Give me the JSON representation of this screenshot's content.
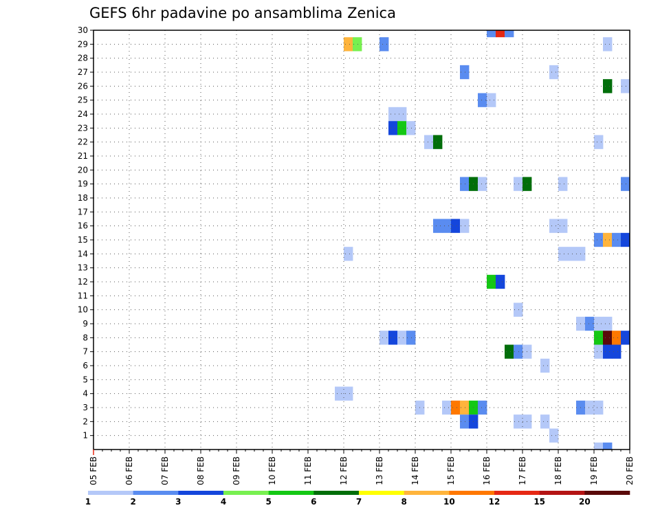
{
  "chart_data": {
    "type": "heatmap",
    "title": "GEFS 6hr padavine po ansamblima Zenica",
    "x_labels": [
      "05 FEB",
      "06 FEB",
      "07 FEB",
      "08 FEB",
      "09 FEB",
      "10 FEB",
      "11 FEB",
      "12 FEB",
      "13 FEB",
      "14 FEB",
      "15 FEB",
      "16 FEB",
      "17 FEB",
      "18 FEB",
      "19 FEB",
      "20 FEB"
    ],
    "y_labels": [
      "1",
      "2",
      "3",
      "4",
      "5",
      "6",
      "7",
      "8",
      "9",
      "10",
      "11",
      "12",
      "13",
      "14",
      "15",
      "16",
      "17",
      "18",
      "19",
      "20",
      "21",
      "22",
      "23",
      "24",
      "25",
      "26",
      "27",
      "28",
      "29",
      "30"
    ],
    "x_range": [
      "05 FEB 00Z",
      "20 FEB 00Z"
    ],
    "time_step_hours": 6,
    "y_range": [
      0,
      30
    ],
    "grid": "dotted",
    "colorbar": {
      "labels": [
        "1",
        "2",
        "3",
        "4",
        "5",
        "6",
        "7",
        "8",
        "10",
        "12",
        "15",
        "20"
      ],
      "colors": [
        "#b4c8f8",
        "#5a8cf0",
        "#1446dc",
        "#78f050",
        "#14c814",
        "#006e0a",
        "#ffff00",
        "#ffb43c",
        "#ff7800",
        "#e62814",
        "#b41414",
        "#5a0a0a"
      ]
    },
    "cells": [
      {
        "m": 30,
        "s": 45,
        "c": 1
      },
      {
        "m": 30,
        "s": 46,
        "c": 9
      },
      {
        "m": 30,
        "s": 47,
        "c": 1
      },
      {
        "m": 29,
        "s": 29,
        "c": 7
      },
      {
        "m": 29,
        "s": 30,
        "c": 3
      },
      {
        "m": 29,
        "s": 33,
        "c": 1
      },
      {
        "m": 29,
        "s": 58,
        "c": 0
      },
      {
        "m": 27,
        "s": 42,
        "c": 1
      },
      {
        "m": 27,
        "s": 52,
        "c": 0
      },
      {
        "m": 26,
        "s": 58,
        "c": 5
      },
      {
        "m": 26,
        "s": 60,
        "c": 0
      },
      {
        "m": 25,
        "s": 44,
        "c": 1
      },
      {
        "m": 25,
        "s": 45,
        "c": 0
      },
      {
        "m": 24,
        "s": 34,
        "c": 0
      },
      {
        "m": 24,
        "s": 35,
        "c": 0
      },
      {
        "m": 23,
        "s": 34,
        "c": 2
      },
      {
        "m": 23,
        "s": 35,
        "c": 4
      },
      {
        "m": 23,
        "s": 36,
        "c": 0
      },
      {
        "m": 22,
        "s": 38,
        "c": 0
      },
      {
        "m": 22,
        "s": 39,
        "c": 5
      },
      {
        "m": 22,
        "s": 57,
        "c": 0
      },
      {
        "m": 19,
        "s": 42,
        "c": 1
      },
      {
        "m": 19,
        "s": 43,
        "c": 5
      },
      {
        "m": 19,
        "s": 44,
        "c": 0
      },
      {
        "m": 19,
        "s": 48,
        "c": 0
      },
      {
        "m": 19,
        "s": 49,
        "c": 5
      },
      {
        "m": 19,
        "s": 53,
        "c": 0
      },
      {
        "m": 19,
        "s": 60,
        "c": 1
      },
      {
        "m": 16,
        "s": 39,
        "c": 1
      },
      {
        "m": 16,
        "s": 40,
        "c": 1
      },
      {
        "m": 16,
        "s": 41,
        "c": 2
      },
      {
        "m": 16,
        "s": 42,
        "c": 0
      },
      {
        "m": 16,
        "s": 52,
        "c": 0
      },
      {
        "m": 16,
        "s": 53,
        "c": 0
      },
      {
        "m": 15,
        "s": 57,
        "c": 1
      },
      {
        "m": 15,
        "s": 58,
        "c": 7
      },
      {
        "m": 15,
        "s": 59,
        "c": 1
      },
      {
        "m": 15,
        "s": 60,
        "c": 2
      },
      {
        "m": 14,
        "s": 29,
        "c": 0
      },
      {
        "m": 14,
        "s": 53,
        "c": 0
      },
      {
        "m": 14,
        "s": 54,
        "c": 0
      },
      {
        "m": 14,
        "s": 55,
        "c": 0
      },
      {
        "m": 12,
        "s": 45,
        "c": 4
      },
      {
        "m": 12,
        "s": 46,
        "c": 2
      },
      {
        "m": 10,
        "s": 48,
        "c": 0
      },
      {
        "m": 9,
        "s": 55,
        "c": 0
      },
      {
        "m": 9,
        "s": 56,
        "c": 1
      },
      {
        "m": 9,
        "s": 57,
        "c": 0
      },
      {
        "m": 9,
        "s": 58,
        "c": 0
      },
      {
        "m": 8,
        "s": 33,
        "c": 0
      },
      {
        "m": 8,
        "s": 34,
        "c": 2
      },
      {
        "m": 8,
        "s": 35,
        "c": 0
      },
      {
        "m": 8,
        "s": 36,
        "c": 1
      },
      {
        "m": 8,
        "s": 57,
        "c": 4
      },
      {
        "m": 8,
        "s": 58,
        "c": 11
      },
      {
        "m": 8,
        "s": 59,
        "c": 8
      },
      {
        "m": 8,
        "s": 60,
        "c": 2
      },
      {
        "m": 7,
        "s": 47,
        "c": 5
      },
      {
        "m": 7,
        "s": 48,
        "c": 1
      },
      {
        "m": 7,
        "s": 49,
        "c": 0
      },
      {
        "m": 7,
        "s": 57,
        "c": 0
      },
      {
        "m": 7,
        "s": 58,
        "c": 2
      },
      {
        "m": 7,
        "s": 59,
        "c": 2
      },
      {
        "m": 6,
        "s": 51,
        "c": 0
      },
      {
        "m": 4,
        "s": 28,
        "c": 0
      },
      {
        "m": 4,
        "s": 29,
        "c": 0
      },
      {
        "m": 3,
        "s": 37,
        "c": 0
      },
      {
        "m": 3,
        "s": 40,
        "c": 0
      },
      {
        "m": 3,
        "s": 41,
        "c": 8
      },
      {
        "m": 3,
        "s": 42,
        "c": 7
      },
      {
        "m": 3,
        "s": 43,
        "c": 4
      },
      {
        "m": 3,
        "s": 44,
        "c": 1
      },
      {
        "m": 3,
        "s": 55,
        "c": 1
      },
      {
        "m": 3,
        "s": 56,
        "c": 0
      },
      {
        "m": 3,
        "s": 57,
        "c": 0
      },
      {
        "m": 2,
        "s": 42,
        "c": 1
      },
      {
        "m": 2,
        "s": 43,
        "c": 2
      },
      {
        "m": 2,
        "s": 48,
        "c": 0
      },
      {
        "m": 2,
        "s": 49,
        "c": 0
      },
      {
        "m": 2,
        "s": 51,
        "c": 0
      },
      {
        "m": 1,
        "s": 52,
        "c": 0
      },
      {
        "m": 0,
        "s": 57,
        "c": 0
      },
      {
        "m": 0,
        "s": 58,
        "c": 1
      }
    ]
  }
}
